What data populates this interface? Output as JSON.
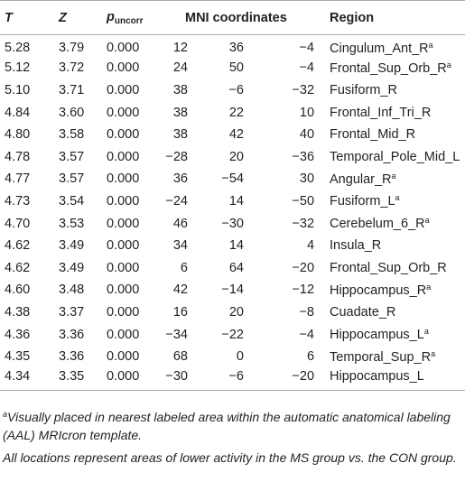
{
  "header": {
    "t": "T",
    "z": "Z",
    "p": "p",
    "p_sub": "uncorr",
    "mni": "MNI coordinates",
    "region": "Region"
  },
  "rows": [
    {
      "t": "5.28",
      "z": "3.79",
      "p": "0.000",
      "x": "12",
      "y": "36",
      "zc": "−4",
      "region": "Cingulum_Ant_R",
      "note": "a"
    },
    {
      "t": "5.12",
      "z": "3.72",
      "p": "0.000",
      "x": "24",
      "y": "50",
      "zc": "−4",
      "region": "Frontal_Sup_Orb_R",
      "note": "a"
    },
    {
      "t": "5.10",
      "z": "3.71",
      "p": "0.000",
      "x": "38",
      "y": "−6",
      "zc": "−32",
      "region": "Fusiform_R"
    },
    {
      "t": "4.84",
      "z": "3.60",
      "p": "0.000",
      "x": "38",
      "y": "22",
      "zc": "10",
      "region": "Frontal_Inf_Tri_R"
    },
    {
      "t": "4.80",
      "z": "3.58",
      "p": "0.000",
      "x": "38",
      "y": "42",
      "zc": "40",
      "region": "Frontal_Mid_R"
    },
    {
      "t": "4.78",
      "z": "3.57",
      "p": "0.000",
      "x": "−28",
      "y": "20",
      "zc": "−36",
      "region": "Temporal_Pole_Mid_L"
    },
    {
      "t": "4.77",
      "z": "3.57",
      "p": "0.000",
      "x": "36",
      "y": "−54",
      "zc": "30",
      "region": "Angular_R",
      "note": "a"
    },
    {
      "t": "4.73",
      "z": "3.54",
      "p": "0.000",
      "x": "−24",
      "y": "14",
      "zc": "−50",
      "region": "Fusiform_L",
      "note": "a"
    },
    {
      "t": "4.70",
      "z": "3.53",
      "p": "0.000",
      "x": "46",
      "y": "−30",
      "zc": "−32",
      "region": "Cerebelum_6_R",
      "note": "a"
    },
    {
      "t": "4.62",
      "z": "3.49",
      "p": "0.000",
      "x": "34",
      "y": "14",
      "zc": "4",
      "region": "Insula_R"
    },
    {
      "t": "4.62",
      "z": "3.49",
      "p": "0.000",
      "x": "6",
      "y": "64",
      "zc": "−20",
      "region": "Frontal_Sup_Orb_R"
    },
    {
      "t": "4.60",
      "z": "3.48",
      "p": "0.000",
      "x": "42",
      "y": "−14",
      "zc": "−12",
      "region": "Hippocampus_R",
      "note": "a"
    },
    {
      "t": "4.38",
      "z": "3.37",
      "p": "0.000",
      "x": "16",
      "y": "20",
      "zc": "−8",
      "region": "Cuadate_R"
    },
    {
      "t": "4.36",
      "z": "3.36",
      "p": "0.000",
      "x": "−34",
      "y": "−22",
      "zc": "−4",
      "region": "Hippocampus_L",
      "note": "a"
    },
    {
      "t": "4.35",
      "z": "3.36",
      "p": "0.000",
      "x": "68",
      "y": "0",
      "zc": "6",
      "region": "Temporal_Sup_R",
      "note": "a"
    },
    {
      "t": "4.34",
      "z": "3.35",
      "p": "0.000",
      "x": "−30",
      "y": "−6",
      "zc": "−20",
      "region": "Hippocampus_L"
    }
  ],
  "footnotes": [
    {
      "mark": "a",
      "text": "Visually placed in nearest labeled area within the automatic anatomical labeling (AAL) MRIcron template."
    },
    {
      "text": "All locations represent areas of lower activity in the MS group vs. the CON group."
    }
  ]
}
